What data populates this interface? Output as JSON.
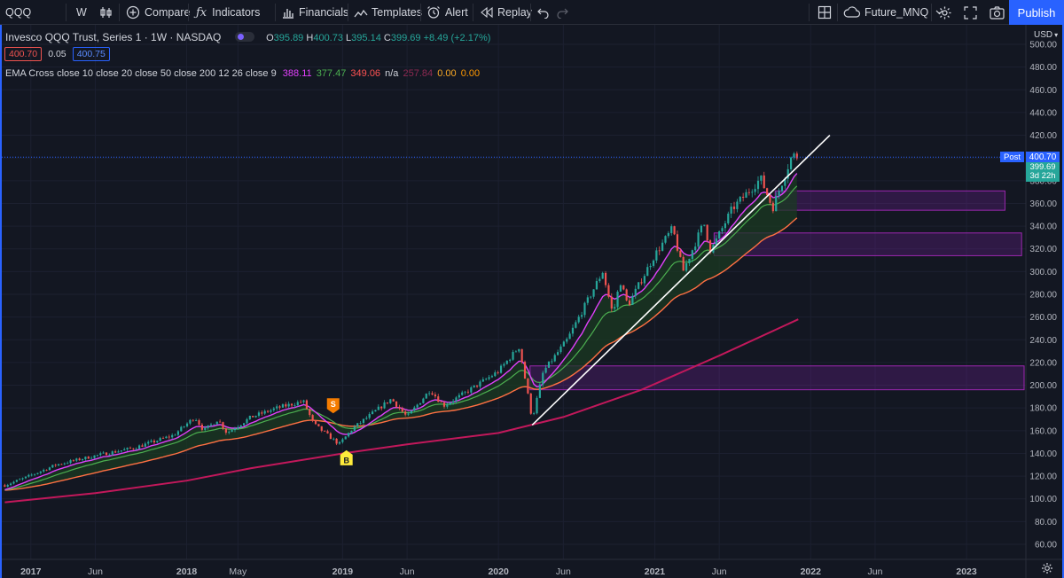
{
  "toolbar": {
    "symbol": "QQQ",
    "interval": "W",
    "compare": "Compare",
    "indicators": "Indicators",
    "financials": "Financials",
    "templates": "Templates",
    "alert": "Alert",
    "replay": "Replay",
    "layout_name": "Future_MNQ",
    "publish": "Publish"
  },
  "legend": {
    "title": "Invesco QQQ Trust, Series 1 · 1W · NASDAQ",
    "ohlc": {
      "o_label": "O",
      "o": "395.89",
      "h_label": "H",
      "h": "400.73",
      "l_label": "L",
      "l": "395.14",
      "c_label": "C",
      "c": "399.69",
      "change": "+8.49 (+2.17%)"
    },
    "bid": "400.70",
    "spread": "0.05",
    "ask": "400.75",
    "indicator_name": "EMA Cross close 10 close 20 close 50 close 200 12 26 close 9",
    "indicator_values": [
      "388.11",
      "377.47",
      "349.06",
      "n/a",
      "257.84",
      "0.00",
      "0.00"
    ]
  },
  "price_axis": {
    "currency": "USD",
    "post_label": "Post",
    "post_price": "400.70",
    "last_price": "399.69",
    "countdown": "3d 22h"
  },
  "markers": {
    "sell": "S",
    "buy": "B"
  },
  "colors": {
    "up": "#26a69a",
    "down": "#ef5350",
    "ema10": "#e040fb",
    "ema20": "#4caf50",
    "ema50": "#ff7043",
    "ema200": "#c2185b",
    "fill": "#1b3a22",
    "zone": "#7b1fa2",
    "trendline": "#ffffff",
    "accent": "#2962ff"
  },
  "chart_data": {
    "type": "candlestick",
    "symbol": "QQQ",
    "interval": "1W",
    "exchange": "NASDAQ",
    "y_axis": {
      "ticks": [
        60,
        80,
        100,
        120,
        140,
        160,
        180,
        200,
        220,
        240,
        260,
        280,
        300,
        320,
        340,
        360,
        380,
        400,
        420,
        440,
        460,
        480,
        500
      ],
      "range": [
        48,
        510
      ],
      "unit": "USD"
    },
    "x_axis": {
      "ticks": [
        {
          "label": "2017",
          "date": "2017-01-01"
        },
        {
          "label": "Jun",
          "date": "2017-06-01"
        },
        {
          "label": "2018",
          "date": "2018-01-01"
        },
        {
          "label": "May",
          "date": "2018-05-01"
        },
        {
          "label": "2019",
          "date": "2019-01-01"
        },
        {
          "label": "Jun",
          "date": "2019-06-01"
        },
        {
          "label": "2020",
          "date": "2020-01-01"
        },
        {
          "label": "Jun",
          "date": "2020-06-01"
        },
        {
          "label": "2021",
          "date": "2021-01-01"
        },
        {
          "label": "Jun",
          "date": "2021-06-01"
        },
        {
          "label": "2022",
          "date": "2022-01-01"
        },
        {
          "label": "Jun",
          "date": "2022-06-01"
        },
        {
          "label": "2023",
          "date": "2023-01-01"
        }
      ],
      "range": [
        "2016-10-25",
        "2023-05-20"
      ]
    },
    "close_path": [
      {
        "date": "2016-11-01",
        "close": 112
      },
      {
        "date": "2016-12-15",
        "close": 118
      },
      {
        "date": "2017-03-01",
        "close": 130
      },
      {
        "date": "2017-06-01",
        "close": 138
      },
      {
        "date": "2017-09-01",
        "close": 145
      },
      {
        "date": "2017-12-01",
        "close": 156
      },
      {
        "date": "2018-01-20",
        "close": 172
      },
      {
        "date": "2018-02-10",
        "close": 160
      },
      {
        "date": "2018-03-15",
        "close": 170
      },
      {
        "date": "2018-04-05",
        "close": 158
      },
      {
        "date": "2018-06-01",
        "close": 172
      },
      {
        "date": "2018-08-01",
        "close": 180
      },
      {
        "date": "2018-10-01",
        "close": 186
      },
      {
        "date": "2018-10-25",
        "close": 166
      },
      {
        "date": "2018-12-24",
        "close": 148
      },
      {
        "date": "2019-01-25",
        "close": 162
      },
      {
        "date": "2019-04-25",
        "close": 188
      },
      {
        "date": "2019-06-01",
        "close": 172
      },
      {
        "date": "2019-07-25",
        "close": 196
      },
      {
        "date": "2019-08-25",
        "close": 182
      },
      {
        "date": "2019-10-01",
        "close": 190
      },
      {
        "date": "2019-12-31",
        "close": 212
      },
      {
        "date": "2020-02-19",
        "close": 234
      },
      {
        "date": "2020-03-20",
        "close": 170
      },
      {
        "date": "2020-04-15",
        "close": 212
      },
      {
        "date": "2020-06-10",
        "close": 240
      },
      {
        "date": "2020-09-01",
        "close": 300
      },
      {
        "date": "2020-09-25",
        "close": 262
      },
      {
        "date": "2020-10-12",
        "close": 292
      },
      {
        "date": "2020-10-30",
        "close": 270
      },
      {
        "date": "2020-12-31",
        "close": 314
      },
      {
        "date": "2021-02-12",
        "close": 338
      },
      {
        "date": "2021-03-08",
        "close": 300
      },
      {
        "date": "2021-04-26",
        "close": 343
      },
      {
        "date": "2021-05-12",
        "close": 318
      },
      {
        "date": "2021-07-01",
        "close": 355
      },
      {
        "date": "2021-09-06",
        "close": 382
      },
      {
        "date": "2021-10-04",
        "close": 356
      },
      {
        "date": "2021-11-19",
        "close": 403
      },
      {
        "date": "2021-12-03",
        "close": 399.69
      }
    ],
    "ema_final": {
      "ema10": 388.11,
      "ema20": 377.47,
      "ema50": 349.06,
      "ema200": 257.84
    },
    "ema200_path": [
      {
        "date": "2016-11-01",
        "close": 97
      },
      {
        "date": "2017-06-01",
        "close": 105
      },
      {
        "date": "2018-01-01",
        "close": 116
      },
      {
        "date": "2018-06-01",
        "close": 127
      },
      {
        "date": "2019-01-01",
        "close": 140
      },
      {
        "date": "2019-06-01",
        "close": 148
      },
      {
        "date": "2020-01-01",
        "close": 158
      },
      {
        "date": "2020-06-01",
        "close": 172
      },
      {
        "date": "2020-12-01",
        "close": 196
      },
      {
        "date": "2021-06-01",
        "close": 226
      },
      {
        "date": "2021-12-03",
        "close": 258
      }
    ],
    "last_price": 399.69,
    "post_price": 400.7,
    "trendline": {
      "start": {
        "date": "2020-03-20",
        "price": 165
      },
      "end": {
        "date": "2022-02-15",
        "price": 420
      }
    },
    "zones": [
      {
        "start": "2021-10-10",
        "end": "2023-04-01",
        "low": 354,
        "high": 371
      },
      {
        "start": "2021-05-20",
        "end": "2023-05-10",
        "low": 314,
        "high": 334
      },
      {
        "start": "2020-03-15",
        "end": "2023-05-20",
        "low": 196,
        "high": 217
      }
    ],
    "signals": [
      {
        "label": "S",
        "date": "2018-12-10",
        "price": 176,
        "position": "above"
      },
      {
        "label": "B",
        "date": "2019-01-10",
        "price": 142,
        "position": "below"
      }
    ]
  }
}
